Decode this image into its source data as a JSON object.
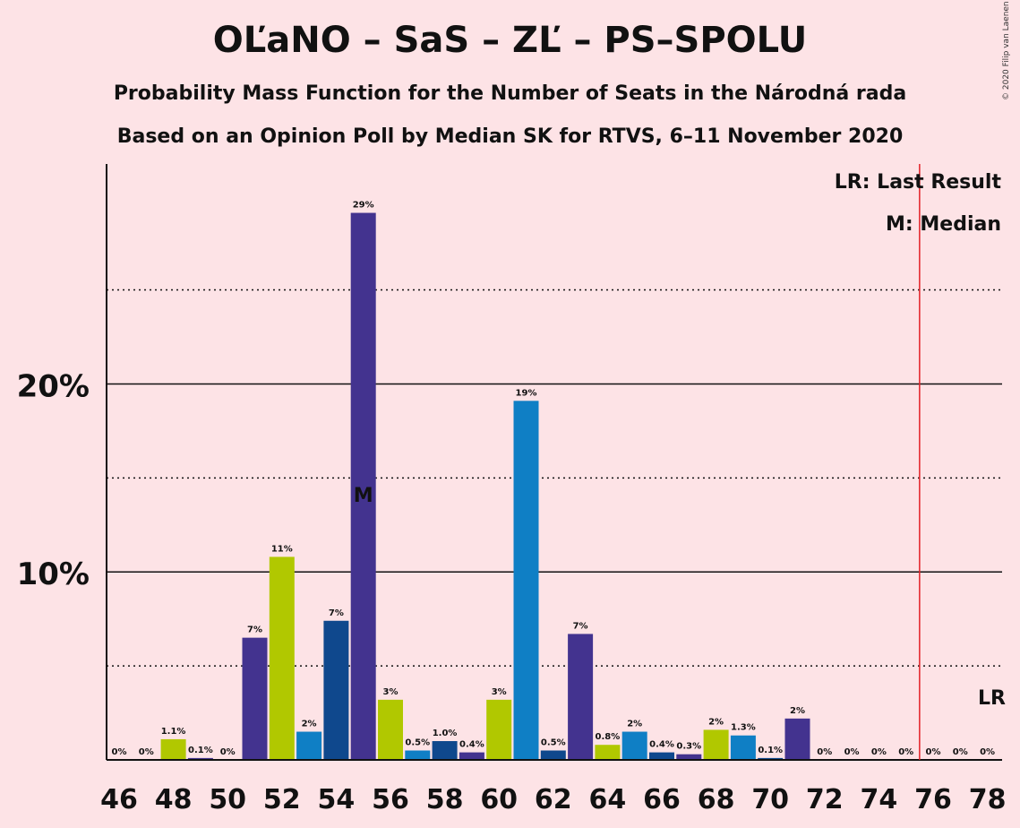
{
  "title": "OĽaNO – SaS – ZĽ – PS–SPOLU",
  "subtitle": "Probability Mass Function for the Number of Seats in the Národná rada",
  "subtitle2": "Based on an Opinion Poll by Median SK for RTVS, 6–11 November 2020",
  "copyright": "© 2020 Filip van Laenen",
  "legend": {
    "last_result": "LR: Last Result",
    "median": "M: Median"
  },
  "markers": {
    "median_label": "M",
    "median_seat": 55,
    "last_result_label": "LR",
    "last_result_seat": 76
  },
  "colors": {
    "background": "#fde3e6",
    "purple": "#43338f",
    "green": "#b1c800",
    "blue": "#0f7fc5",
    "navy": "#0f488d",
    "last_result_line": "#e32027"
  },
  "chart_data": {
    "type": "bar",
    "x": [
      46,
      47,
      48,
      49,
      50,
      51,
      52,
      53,
      54,
      55,
      56,
      57,
      58,
      59,
      60,
      61,
      62,
      63,
      64,
      65,
      66,
      67,
      68,
      69,
      70,
      71,
      72,
      73,
      74,
      75,
      76,
      77,
      78
    ],
    "values": [
      0,
      0,
      1.1,
      0.1,
      0,
      6.5,
      10.8,
      1.5,
      7.4,
      29.1,
      3.2,
      0.5,
      1.0,
      0.4,
      3.2,
      19.1,
      0.5,
      6.7,
      0.8,
      1.5,
      0.4,
      0.3,
      1.6,
      1.3,
      0.1,
      2.2,
      0,
      0,
      0,
      0,
      0,
      0,
      0
    ],
    "labels": [
      "0%",
      "0%",
      "1.1%",
      "0.1%",
      "0%",
      "7%",
      "11%",
      "2%",
      "7%",
      "29%",
      "3%",
      "0.5%",
      "1.0%",
      "0.4%",
      "3%",
      "19%",
      "0.5%",
      "7%",
      "0.8%",
      "2%",
      "0.4%",
      "0.3%",
      "2%",
      "1.3%",
      "0.1%",
      "2%",
      "0%",
      "0%",
      "0%",
      "0%",
      "0%",
      "0%",
      "0%"
    ],
    "bar_colors": [
      "purple",
      "green",
      "green",
      "purple",
      "purple",
      "purple",
      "green",
      "blue",
      "navy",
      "purple",
      "green",
      "blue",
      "navy",
      "purple",
      "green",
      "blue",
      "navy",
      "purple",
      "green",
      "blue",
      "navy",
      "purple",
      "green",
      "blue",
      "navy",
      "purple",
      "green",
      "blue",
      "navy",
      "purple",
      "green",
      "blue",
      "navy"
    ],
    "x_ticks": [
      46,
      48,
      50,
      52,
      54,
      56,
      58,
      60,
      62,
      64,
      66,
      68,
      70,
      72,
      74,
      76,
      78
    ],
    "y_ticks": [
      "10%",
      "20%"
    ],
    "y_tick_values": [
      10,
      20
    ],
    "y_dotted_values": [
      5,
      15,
      25
    ],
    "ylim": [
      0,
      31.7
    ],
    "xlabel": "",
    "ylabel": ""
  }
}
